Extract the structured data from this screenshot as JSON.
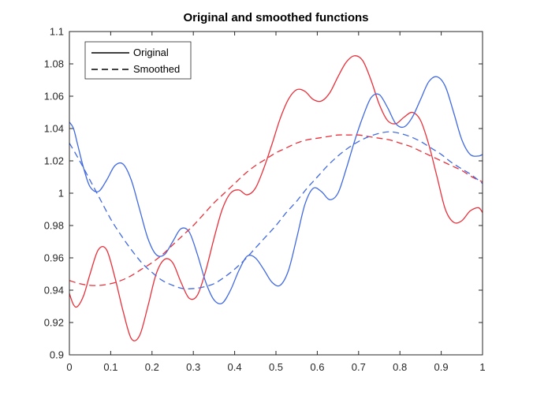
{
  "chart_data": {
    "type": "line",
    "title": "Original and smoothed functions",
    "xlabel": "",
    "ylabel": "",
    "xlim": [
      0,
      1
    ],
    "ylim": [
      0.9,
      1.1
    ],
    "xticks": [
      0,
      0.1,
      0.2,
      0.3,
      0.4,
      0.5,
      0.6,
      0.7,
      0.8,
      0.9,
      1
    ],
    "xtick_labels": [
      "0",
      "0.1",
      "0.2",
      "0.3",
      "0.4",
      "0.5",
      "0.6",
      "0.7",
      "0.8",
      "0.9",
      "1"
    ],
    "yticks": [
      0.9,
      0.92,
      0.94,
      0.96,
      0.98,
      1,
      1.02,
      1.04,
      1.06,
      1.08,
      1.1
    ],
    "ytick_labels": [
      "0.9",
      "0.92",
      "0.94",
      "0.96",
      "0.98",
      "1",
      "1.02",
      "1.04",
      "1.06",
      "1.08",
      "1.1"
    ],
    "grid": false,
    "legend": {
      "placement": "top-left",
      "entries": [
        {
          "label": "Original",
          "style": "solid",
          "color": "#000000"
        },
        {
          "label": "Smoothed",
          "style": "dashed",
          "color": "#000000"
        }
      ]
    },
    "series": [
      {
        "color": "#e8303a",
        "style": "solid",
        "x": [
          0,
          0.01,
          0.02,
          0.035,
          0.05,
          0.07,
          0.09,
          0.11,
          0.13,
          0.15,
          0.17,
          0.19,
          0.21,
          0.23,
          0.25,
          0.27,
          0.29,
          0.31,
          0.33,
          0.35,
          0.37,
          0.39,
          0.41,
          0.43,
          0.45,
          0.47,
          0.49,
          0.51,
          0.53,
          0.55,
          0.57,
          0.59,
          0.61,
          0.63,
          0.65,
          0.67,
          0.69,
          0.71,
          0.73,
          0.75,
          0.77,
          0.79,
          0.81,
          0.83,
          0.85,
          0.87,
          0.89,
          0.91,
          0.93,
          0.95,
          0.97,
          0.99,
          1
        ],
        "y": [
          0.938,
          0.931,
          0.93,
          0.937,
          0.95,
          0.965,
          0.965,
          0.948,
          0.927,
          0.91,
          0.912,
          0.93,
          0.95,
          0.959,
          0.957,
          0.945,
          0.935,
          0.937,
          0.952,
          0.972,
          0.99,
          1.0,
          1.002,
          0.999,
          1.003,
          1.015,
          1.03,
          1.046,
          1.058,
          1.064,
          1.063,
          1.058,
          1.057,
          1.062,
          1.072,
          1.081,
          1.085,
          1.082,
          1.07,
          1.055,
          1.045,
          1.043,
          1.047,
          1.05,
          1.045,
          1.03,
          1.01,
          0.99,
          0.982,
          0.983,
          0.989,
          0.991,
          0.988
        ]
      },
      {
        "color": "#4169e1",
        "style": "solid",
        "x": [
          0,
          0.01,
          0.02,
          0.035,
          0.05,
          0.07,
          0.09,
          0.11,
          0.13,
          0.15,
          0.17,
          0.19,
          0.21,
          0.23,
          0.25,
          0.27,
          0.29,
          0.31,
          0.33,
          0.35,
          0.37,
          0.39,
          0.41,
          0.43,
          0.45,
          0.47,
          0.49,
          0.51,
          0.53,
          0.55,
          0.57,
          0.59,
          0.61,
          0.63,
          0.65,
          0.67,
          0.69,
          0.71,
          0.73,
          0.75,
          0.77,
          0.79,
          0.81,
          0.83,
          0.85,
          0.87,
          0.89,
          0.91,
          0.93,
          0.95,
          0.97,
          0.99,
          1
        ],
        "y": [
          1.044,
          1.04,
          1.03,
          1.015,
          1.004,
          1.001,
          1.008,
          1.017,
          1.018,
          1.008,
          0.99,
          0.972,
          0.962,
          0.962,
          0.97,
          0.978,
          0.976,
          0.962,
          0.945,
          0.934,
          0.932,
          0.94,
          0.952,
          0.961,
          0.96,
          0.953,
          0.945,
          0.943,
          0.952,
          0.972,
          0.993,
          1.003,
          1.001,
          0.996,
          1.0,
          1.015,
          1.032,
          1.047,
          1.059,
          1.061,
          1.053,
          1.043,
          1.041,
          1.047,
          1.058,
          1.069,
          1.072,
          1.066,
          1.05,
          1.033,
          1.024,
          1.023,
          1.024
        ]
      },
      {
        "color": "#e8303a",
        "style": "dashed",
        "x": [
          0,
          0.025,
          0.05,
          0.075,
          0.1,
          0.125,
          0.15,
          0.175,
          0.2,
          0.225,
          0.25,
          0.275,
          0.3,
          0.325,
          0.35,
          0.375,
          0.4,
          0.425,
          0.45,
          0.475,
          0.5,
          0.525,
          0.55,
          0.575,
          0.6,
          0.625,
          0.65,
          0.675,
          0.7,
          0.725,
          0.75,
          0.775,
          0.8,
          0.825,
          0.85,
          0.875,
          0.9,
          0.925,
          0.95,
          0.975,
          1
        ],
        "y": [
          0.946,
          0.944,
          0.943,
          0.943,
          0.944,
          0.946,
          0.949,
          0.953,
          0.957,
          0.962,
          0.968,
          0.974,
          0.98,
          0.987,
          0.994,
          1.0,
          1.006,
          1.012,
          1.017,
          1.021,
          1.025,
          1.028,
          1.031,
          1.033,
          1.034,
          1.035,
          1.036,
          1.036,
          1.036,
          1.035,
          1.034,
          1.033,
          1.031,
          1.029,
          1.026,
          1.023,
          1.02,
          1.017,
          1.014,
          1.01,
          1.007
        ]
      },
      {
        "color": "#4169e1",
        "style": "dashed",
        "x": [
          0,
          0.025,
          0.05,
          0.075,
          0.1,
          0.125,
          0.15,
          0.175,
          0.2,
          0.225,
          0.25,
          0.275,
          0.3,
          0.325,
          0.35,
          0.375,
          0.4,
          0.425,
          0.45,
          0.475,
          0.5,
          0.525,
          0.55,
          0.575,
          0.6,
          0.625,
          0.65,
          0.675,
          0.7,
          0.725,
          0.75,
          0.775,
          0.8,
          0.825,
          0.85,
          0.875,
          0.9,
          0.925,
          0.95,
          0.975,
          1
        ],
        "y": [
          1.031,
          1.02,
          1.008,
          0.996,
          0.984,
          0.974,
          0.965,
          0.957,
          0.951,
          0.946,
          0.943,
          0.941,
          0.941,
          0.942,
          0.944,
          0.948,
          0.953,
          0.959,
          0.966,
          0.973,
          0.98,
          0.988,
          0.995,
          1.003,
          1.01,
          1.017,
          1.023,
          1.028,
          1.032,
          1.035,
          1.037,
          1.038,
          1.037,
          1.035,
          1.032,
          1.028,
          1.024,
          1.019,
          1.015,
          1.011,
          1.006
        ]
      }
    ]
  }
}
